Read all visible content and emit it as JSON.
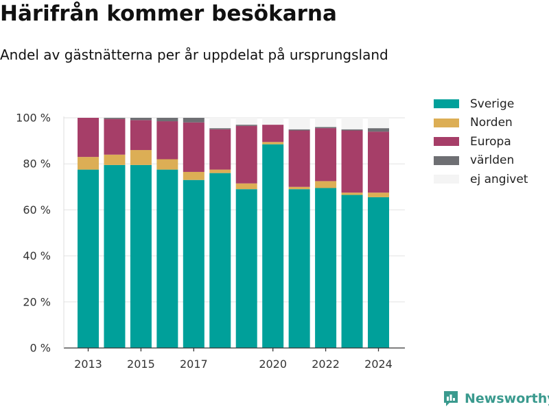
{
  "header": {
    "title": "Härifrån kommer besökarna",
    "subtitle": "Andel av gästnätterna per år uppdelat på ursprungsland"
  },
  "brand": {
    "name": "Newsworthy",
    "icon": "newsworthy-logo-icon",
    "color": "#3a9a8e"
  },
  "chart_data": {
    "type": "bar",
    "stacked": true,
    "title": "Härifrån kommer besökarna",
    "subtitle": "Andel av gästnätterna per år uppdelat på ursprungsland",
    "xlabel": "",
    "ylabel": "",
    "x": [
      2013,
      2014,
      2015,
      2016,
      2017,
      2018,
      2019,
      2020,
      2021,
      2022,
      2023,
      2024
    ],
    "x_ticks": [
      "2013",
      "2015",
      "2017",
      "2020",
      "2022",
      "2024"
    ],
    "y_ticks": [
      "0 %",
      "20 %",
      "40 %",
      "60 %",
      "80 %",
      "100 %"
    ],
    "ylim": [
      0,
      100
    ],
    "grid": true,
    "legend_position": "right",
    "series": [
      {
        "name": "Sverige",
        "color": "#00a09a",
        "values": [
          77.5,
          79.5,
          79.5,
          77.5,
          73,
          76,
          69,
          88.5,
          69,
          69.5,
          66.5,
          65.5
        ]
      },
      {
        "name": "Norden",
        "color": "#dcae55",
        "values": [
          5.5,
          4.5,
          6.5,
          4.5,
          3.5,
          1.5,
          2.5,
          1,
          1,
          3,
          1,
          2
        ]
      },
      {
        "name": "Europa",
        "color": "#a63e68",
        "values": [
          17,
          15.5,
          13,
          16.5,
          21.5,
          17.5,
          25,
          7.5,
          24.5,
          23,
          27,
          26.5
        ]
      },
      {
        "name": "världen",
        "color": "#6e6f73",
        "values": [
          0,
          0.5,
          1,
          1.5,
          2,
          0.5,
          0.5,
          0,
          0.5,
          0.5,
          0.5,
          1.5
        ]
      },
      {
        "name": "ej angivet",
        "color": "#f4f4f4",
        "values": [
          0,
          0,
          0,
          0,
          0,
          4.5,
          3,
          3,
          5,
          4,
          5,
          4.5
        ]
      }
    ]
  }
}
